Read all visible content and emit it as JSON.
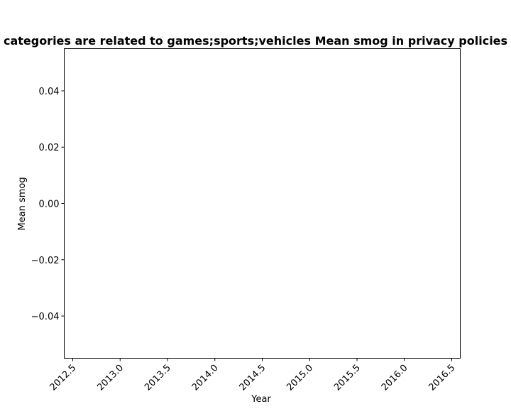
{
  "chart_data": {
    "type": "line",
    "title": "categories are related to games;sports;vehicles Mean smog in privacy policies",
    "xlabel": "Year",
    "ylabel": "Mean smog",
    "xlim": [
      2012.41,
      2016.59
    ],
    "ylim": [
      -0.055,
      0.055
    ],
    "x_ticks": [
      2012.5,
      2013.0,
      2013.5,
      2014.0,
      2014.5,
      2015.0,
      2015.5,
      2016.0,
      2016.5
    ],
    "x_tick_labels": [
      "2012.5",
      "2013.0",
      "2013.5",
      "2014.0",
      "2014.5",
      "2015.0",
      "2015.5",
      "2016.0",
      "2016.5"
    ],
    "y_ticks": [
      0.04,
      0.02,
      0.0,
      -0.02,
      -0.04
    ],
    "y_tick_labels": [
      "0.04",
      "0.02",
      "0.00",
      "−0.02",
      "−0.04"
    ],
    "x_tick_rotation_deg": 45,
    "grid": false,
    "legend": "none",
    "series": [
      {
        "x": [],
        "values": []
      }
    ],
    "colors": {
      "axis": "#000000",
      "background": "#ffffff"
    }
  }
}
